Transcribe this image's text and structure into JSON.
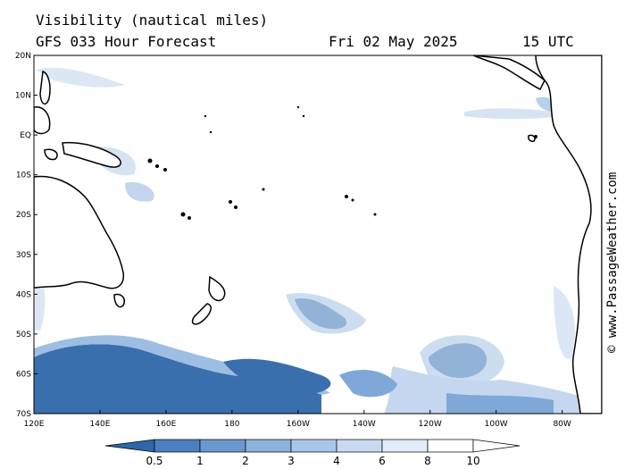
{
  "header": {
    "title": "Visibility (nautical miles)",
    "forecast": "GFS 033 Hour Forecast",
    "date": "Fri 02 May 2025",
    "time": "15 UTC"
  },
  "watermark": "© www.PassageWeather.com",
  "map": {
    "lat_labels": [
      "20N",
      "10N",
      "EQ",
      "10S",
      "20S",
      "30S",
      "40S",
      "50S",
      "60S",
      "70S"
    ],
    "lon_labels": [
      "120E",
      "140E",
      "160E",
      "180",
      "160W",
      "140W",
      "120W",
      "100W",
      "80W"
    ],
    "land_color": "#000000",
    "fog_colors": {
      "dense": "#3a6fae",
      "medium": "#7fa8d8",
      "light": "#c4d7ee"
    }
  },
  "colorbar": {
    "labels": [
      "0.5",
      "1",
      "2",
      "3",
      "4",
      "6",
      "8",
      "10"
    ],
    "colors": [
      "#2f66a8",
      "#4a80c0",
      "#6b98cf",
      "#8cb2dd",
      "#aac7e8",
      "#c7daf0",
      "#e2ecf8",
      "#ffffff"
    ]
  }
}
